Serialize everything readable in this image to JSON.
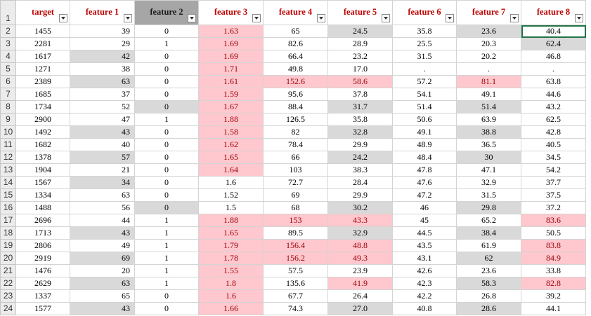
{
  "colors": {
    "pink_fill": "#ffc7ce",
    "pink_text": "#9c0006",
    "gray_fill": "#d9d9d9",
    "header_text": "#c00000",
    "selected_header": "#a6a6a6"
  },
  "header_row_number": "1",
  "columns": [
    {
      "label": "target",
      "align": "cen"
    },
    {
      "label": "feature 1",
      "align": "num"
    },
    {
      "label": "feature 2",
      "align": "cen",
      "selected": true
    },
    {
      "label": "feature 3",
      "align": "cen"
    },
    {
      "label": "feature 4",
      "align": "cen"
    },
    {
      "label": "feature 5",
      "align": "cen"
    },
    {
      "label": "feature 6",
      "align": "cen"
    },
    {
      "label": "feature 7",
      "align": "cen"
    },
    {
      "label": "feature 8",
      "align": "cen"
    }
  ],
  "rows": [
    {
      "n": "2",
      "cells": [
        "1455",
        "39",
        "0",
        "1.63",
        "65",
        "24.5",
        "35.8",
        "23.6",
        "40.4"
      ],
      "fill": [
        "",
        "",
        "",
        "p",
        "",
        "g",
        "",
        "g",
        ""
      ]
    },
    {
      "n": "3",
      "cells": [
        "2281",
        "29",
        "1",
        "1.69",
        "82.6",
        "28.9",
        "25.5",
        "20.3",
        "62.4"
      ],
      "fill": [
        "",
        "",
        "",
        "p",
        "",
        "",
        "",
        "",
        "g"
      ]
    },
    {
      "n": "4",
      "cells": [
        "1617",
        "42",
        "0",
        "1.69",
        "66.4",
        "23.2",
        "31.5",
        "20.2",
        "46.8"
      ],
      "fill": [
        "",
        "g",
        "",
        "p",
        "",
        "",
        "",
        "",
        ""
      ]
    },
    {
      "n": "5",
      "cells": [
        "1271",
        "38",
        "0",
        "1.71",
        "49.8",
        "17.0",
        ".",
        ".",
        "."
      ],
      "fill": [
        "",
        "",
        "",
        "p",
        "",
        "",
        "",
        "",
        ""
      ]
    },
    {
      "n": "6",
      "cells": [
        "2389",
        "63",
        "0",
        "1.61",
        "152.6",
        "58.6",
        "57.2",
        "81.1",
        "63.8"
      ],
      "fill": [
        "",
        "g",
        "",
        "p",
        "p",
        "p",
        "",
        "p",
        ""
      ]
    },
    {
      "n": "7",
      "cells": [
        "1685",
        "37",
        "0",
        "1.59",
        "95.6",
        "37.8",
        "54.1",
        "49.1",
        "44.6"
      ],
      "fill": [
        "",
        "",
        "",
        "p",
        "",
        "",
        "",
        "",
        ""
      ]
    },
    {
      "n": "8",
      "cells": [
        "1734",
        "52",
        "0",
        "1.67",
        "88.4",
        "31.7",
        "51.4",
        "51.4",
        "43.2"
      ],
      "fill": [
        "",
        "",
        "g",
        "p",
        "",
        "g",
        "",
        "g",
        ""
      ]
    },
    {
      "n": "9",
      "cells": [
        "2900",
        "47",
        "1",
        "1.88",
        "126.5",
        "35.8",
        "50.6",
        "63.9",
        "62.5"
      ],
      "fill": [
        "",
        "",
        "",
        "p",
        "",
        "",
        "",
        "",
        ""
      ]
    },
    {
      "n": "10",
      "cells": [
        "1492",
        "43",
        "0",
        "1.58",
        "82",
        "32.8",
        "49.1",
        "38.8",
        "42.8"
      ],
      "fill": [
        "",
        "g",
        "",
        "p",
        "",
        "g",
        "",
        "g",
        ""
      ]
    },
    {
      "n": "11",
      "cells": [
        "1682",
        "40",
        "0",
        "1.62",
        "78.4",
        "29.9",
        "48.9",
        "36.5",
        "40.5"
      ],
      "fill": [
        "",
        "",
        "",
        "p",
        "",
        "",
        "",
        "",
        ""
      ]
    },
    {
      "n": "12",
      "cells": [
        "1378",
        "57",
        "0",
        "1.65",
        "66",
        "24.2",
        "48.4",
        "30",
        "34.5"
      ],
      "fill": [
        "",
        "g",
        "",
        "p",
        "",
        "g",
        "",
        "g",
        ""
      ]
    },
    {
      "n": "13",
      "cells": [
        "1904",
        "21",
        "0",
        "1.64",
        "103",
        "38.3",
        "47.8",
        "47.1",
        "54.2"
      ],
      "fill": [
        "",
        "",
        "",
        "p",
        "",
        "",
        "",
        "",
        ""
      ]
    },
    {
      "n": "14",
      "cells": [
        "1567",
        "34",
        "0",
        "1.6",
        "72.7",
        "28.4",
        "47.6",
        "32.9",
        "37.7"
      ],
      "fill": [
        "",
        "g",
        "",
        "",
        "",
        "",
        "",
        "",
        ""
      ]
    },
    {
      "n": "15",
      "cells": [
        "1334",
        "63",
        "0",
        "1.52",
        "69",
        "29.9",
        "47.2",
        "31.5",
        "37.5"
      ],
      "fill": [
        "",
        "",
        "",
        "",
        "",
        "",
        "",
        "",
        ""
      ]
    },
    {
      "n": "16",
      "cells": [
        "1488",
        "56",
        "0",
        "1.5",
        "68",
        "30.2",
        "46",
        "29.8",
        "37.2"
      ],
      "fill": [
        "",
        "",
        "g",
        "",
        "",
        "g",
        "",
        "g",
        ""
      ]
    },
    {
      "n": "17",
      "cells": [
        "2696",
        "44",
        "1",
        "1.88",
        "153",
        "43.3",
        "45",
        "65.2",
        "83.6"
      ],
      "fill": [
        "",
        "",
        "",
        "p",
        "p",
        "p",
        "",
        "",
        "p"
      ]
    },
    {
      "n": "18",
      "cells": [
        "1713",
        "43",
        "1",
        "1.65",
        "89.5",
        "32.9",
        "44.5",
        "38.4",
        "50.5"
      ],
      "fill": [
        "",
        "g",
        "",
        "p",
        "",
        "g",
        "",
        "g",
        ""
      ]
    },
    {
      "n": "19",
      "cells": [
        "2806",
        "49",
        "1",
        "1.79",
        "156.4",
        "48.8",
        "43.5",
        "61.9",
        "83.8"
      ],
      "fill": [
        "",
        "",
        "",
        "p",
        "p",
        "p",
        "",
        "",
        "p"
      ]
    },
    {
      "n": "20",
      "cells": [
        "2919",
        "69",
        "1",
        "1.78",
        "156.2",
        "49.3",
        "43.1",
        "62",
        "84.9"
      ],
      "fill": [
        "",
        "g",
        "",
        "p",
        "p",
        "p",
        "",
        "g",
        "p"
      ]
    },
    {
      "n": "21",
      "cells": [
        "1476",
        "20",
        "1",
        "1.55",
        "57.5",
        "23.9",
        "42.6",
        "23.6",
        "33.8"
      ],
      "fill": [
        "",
        "",
        "",
        "p",
        "",
        "",
        "",
        "",
        ""
      ]
    },
    {
      "n": "22",
      "cells": [
        "2629",
        "63",
        "1",
        "1.8",
        "135.6",
        "41.9",
        "42.3",
        "58.3",
        "82.8"
      ],
      "fill": [
        "",
        "g",
        "",
        "p",
        "",
        "p",
        "",
        "g",
        "p"
      ]
    },
    {
      "n": "23",
      "cells": [
        "1337",
        "65",
        "0",
        "1.6",
        "67.7",
        "26.4",
        "42.2",
        "26.8",
        "39.2"
      ],
      "fill": [
        "",
        "",
        "",
        "p",
        "",
        "",
        "",
        "",
        ""
      ]
    },
    {
      "n": "24",
      "cells": [
        "1577",
        "43",
        "0",
        "1.66",
        "74.3",
        "27.0",
        "40.8",
        "28.6",
        "44.1"
      ],
      "fill": [
        "",
        "g",
        "",
        "p",
        "",
        "g",
        "",
        "g",
        ""
      ]
    }
  ],
  "active_cell": {
    "row": "2",
    "column": "feature 8"
  }
}
